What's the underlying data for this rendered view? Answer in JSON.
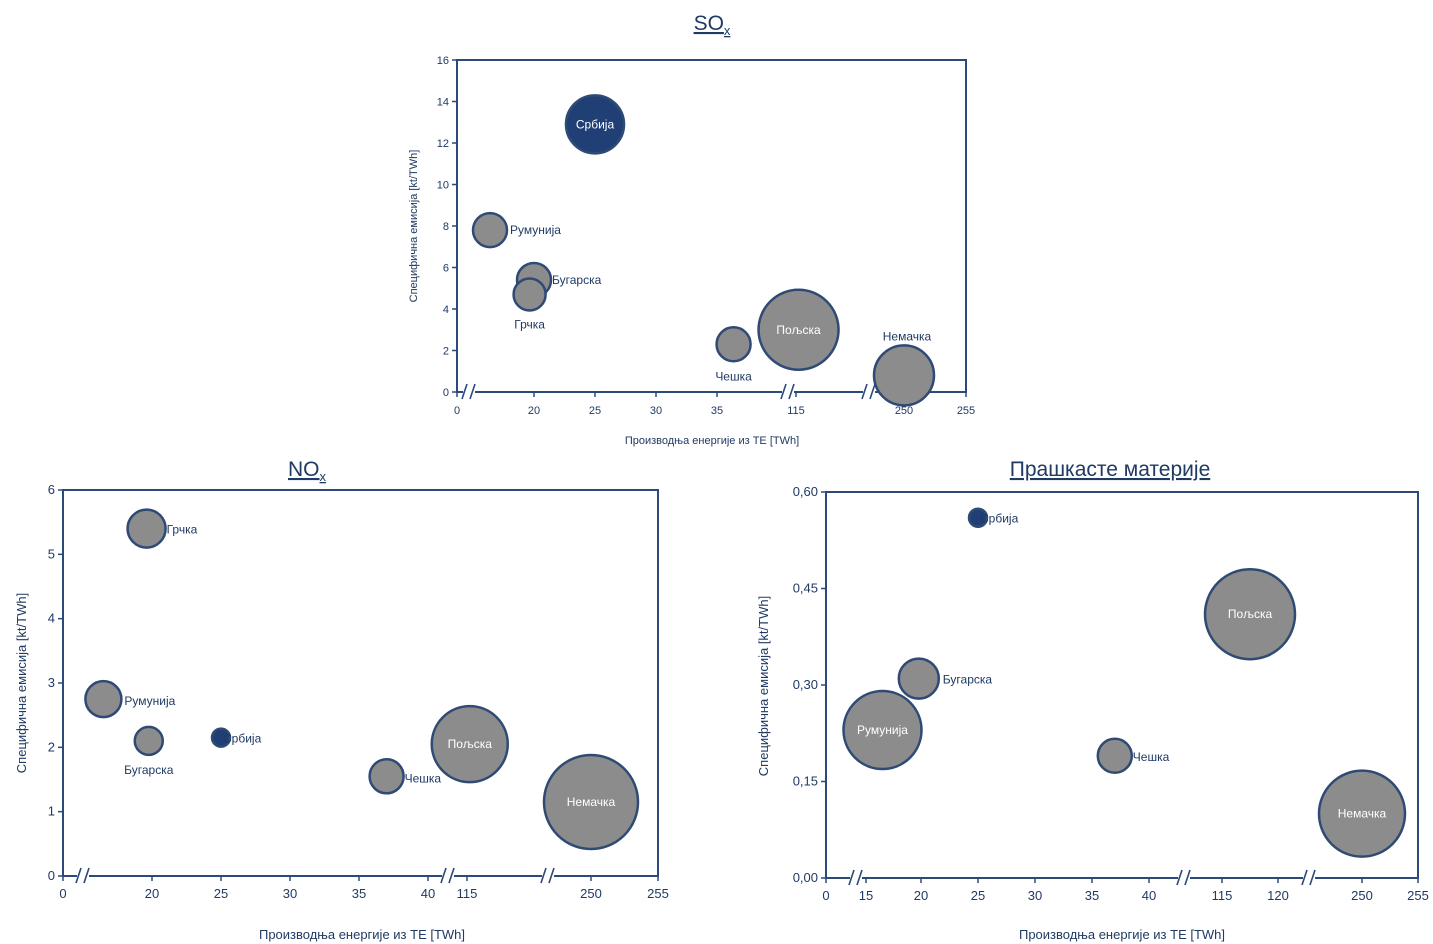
{
  "chart_data": [
    {
      "type": "scatter",
      "title": "SO",
      "title_sub": "x",
      "xlabel": "Производња енергије из ТЕ [TWh]",
      "ylabel": "Специфична емисија [kt/TWh]",
      "ylim": [
        0,
        16
      ],
      "yticks": [
        "0",
        "2",
        "4",
        "6",
        "8",
        "10",
        "12",
        "14",
        "16"
      ],
      "xticks": [
        "0",
        "20",
        "25",
        "30",
        "35",
        "115",
        "250",
        "255"
      ],
      "axis_breaks": 3,
      "grid": false,
      "legend": "none",
      "points": [
        {
          "label": "Србија",
          "x": 25,
          "y": 12.9,
          "highlight": true
        },
        {
          "label": "Румунија",
          "x": 15,
          "y": 7.8
        },
        {
          "label": "Бугарска",
          "x": 20,
          "y": 5.4
        },
        {
          "label": "Грчка",
          "x": 19.5,
          "y": 4.7
        },
        {
          "label": "Чешка",
          "x": 37,
          "y": 2.3
        },
        {
          "label": "Пољска",
          "x": 118,
          "y": 3.0
        },
        {
          "label": "Немачка",
          "x": 250,
          "y": 0.8
        }
      ]
    },
    {
      "type": "scatter",
      "title": "NO",
      "title_sub": "x",
      "xlabel": "Производња енергије из ТЕ [TWh]",
      "ylabel": "Специфична емисија [kt/TWh]",
      "ylim": [
        0,
        6
      ],
      "yticks": [
        "0",
        "1",
        "2",
        "3",
        "4",
        "5",
        "6"
      ],
      "xticks": [
        "0",
        "20",
        "25",
        "30",
        "35",
        "40",
        "115",
        "250",
        "255"
      ],
      "axis_breaks": 3,
      "grid": false,
      "legend": "none",
      "points": [
        {
          "label": "Грчка",
          "x": 19.5,
          "y": 5.4
        },
        {
          "label": "Румунија",
          "x": 15.5,
          "y": 2.75
        },
        {
          "label": "Бугарска",
          "x": 19.7,
          "y": 2.1
        },
        {
          "label": "Србија",
          "x": 25,
          "y": 2.15,
          "highlight": true
        },
        {
          "label": "Чешка",
          "x": 37,
          "y": 1.55
        },
        {
          "label": "Пољска",
          "x": 118,
          "y": 2.05
        },
        {
          "label": "Немачка",
          "x": 250,
          "y": 1.15
        }
      ]
    },
    {
      "type": "scatter",
      "title": "Прашкасте материје",
      "xlabel": "Производња енергије из ТЕ [TWh]",
      "ylabel": "Специфична емисија [kt/TWh]",
      "ylim": [
        0,
        0.6
      ],
      "yticks": [
        "0,00",
        "0,15",
        "0,30",
        "0,45",
        "0,60"
      ],
      "xticks": [
        "0",
        "15",
        "20",
        "25",
        "30",
        "35",
        "40",
        "115",
        "120",
        "250",
        "255"
      ],
      "axis_breaks": 3,
      "grid": false,
      "legend": "none",
      "points": [
        {
          "label": "Србија",
          "x": 25,
          "y": 0.56,
          "highlight": true
        },
        {
          "label": "Румунија",
          "x": 16.5,
          "y": 0.23
        },
        {
          "label": "Бугарска",
          "x": 19.8,
          "y": 0.31
        },
        {
          "label": "Чешка",
          "x": 37,
          "y": 0.19
        },
        {
          "label": "Пољска",
          "x": 117.5,
          "y": 0.41
        },
        {
          "label": "Немачка",
          "x": 250,
          "y": 0.1
        }
      ]
    }
  ]
}
